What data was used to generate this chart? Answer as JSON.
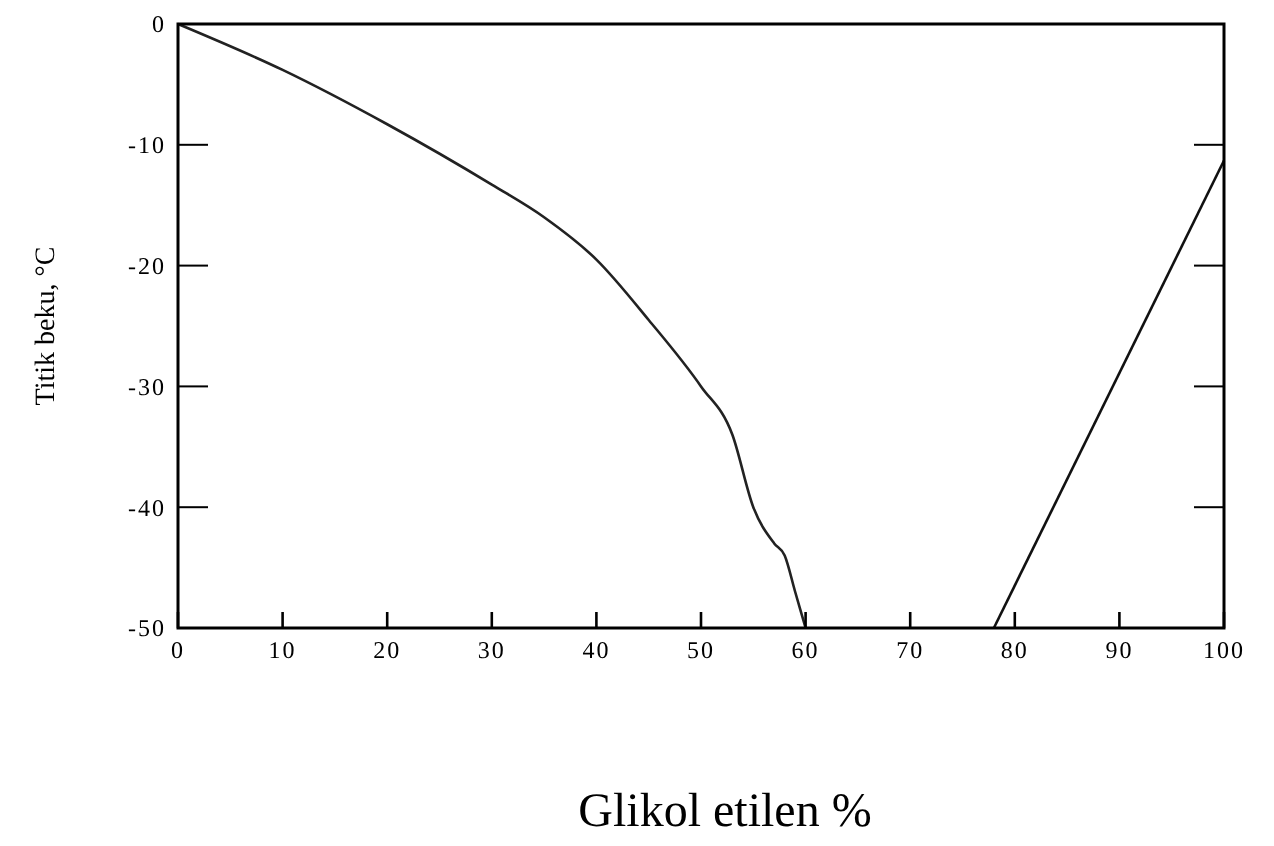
{
  "chart_data": {
    "type": "line",
    "xlabel": "Glikol etilen %",
    "ylabel": "Titik beku, °C",
    "xlim": [
      0,
      100
    ],
    "ylim": [
      -50,
      0
    ],
    "xticks": [
      0,
      10,
      20,
      30,
      40,
      50,
      60,
      70,
      80,
      90,
      100
    ],
    "yticks": [
      0,
      -10,
      -20,
      -30,
      -40,
      -50
    ],
    "grid": false,
    "marker": "none",
    "line_style": "solid",
    "series": [
      {
        "color": "#222222",
        "x": [
          0,
          10,
          20,
          30,
          35,
          40,
          45,
          50,
          53,
          55,
          57,
          58,
          59,
          60
        ],
        "values": [
          0,
          -3.8,
          -8.3,
          -13.3,
          -16,
          -19.5,
          -24.5,
          -30,
          -34,
          -40,
          -43,
          -44,
          -47,
          -50
        ]
      },
      {
        "color": "#111111",
        "x": [
          78,
          100
        ],
        "values": [
          -50,
          -11.3
        ]
      }
    ]
  }
}
